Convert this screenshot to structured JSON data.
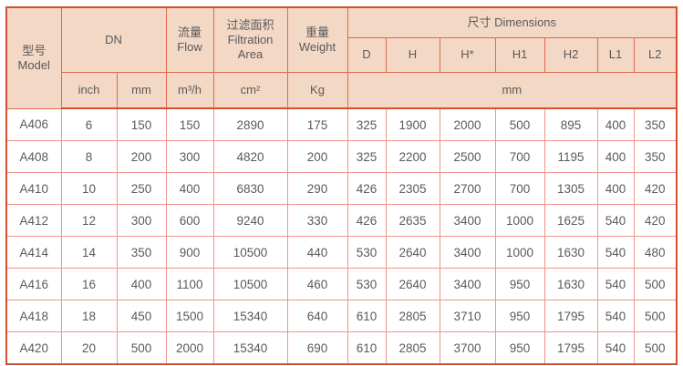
{
  "table": {
    "header": {
      "model": "型号\nModel",
      "dn": "DN",
      "flow": "流量\nFlow",
      "filtration": "过滤面积\nFiltration\nArea",
      "weight": "重量\nWeight",
      "dimensions": "尺寸 Dimensions",
      "inch": "inch",
      "mm": "mm",
      "flow_unit": "m³/h",
      "filtration_unit": "cm²",
      "weight_unit": "Kg",
      "dim_cols": [
        "D",
        "H",
        "H*",
        "H1",
        "H2",
        "L1",
        "L2"
      ],
      "dim_unit": "mm"
    },
    "rows": [
      [
        "A406",
        "6",
        "150",
        "150",
        "2890",
        "175",
        "325",
        "1900",
        "2000",
        "500",
        "895",
        "400",
        "350"
      ],
      [
        "A408",
        "8",
        "200",
        "300",
        "4820",
        "200",
        "325",
        "2200",
        "2500",
        "700",
        "1195",
        "400",
        "350"
      ],
      [
        "A410",
        "10",
        "250",
        "400",
        "6830",
        "290",
        "426",
        "2305",
        "2700",
        "700",
        "1305",
        "400",
        "420"
      ],
      [
        "A412",
        "12",
        "300",
        "600",
        "9240",
        "330",
        "426",
        "2635",
        "3400",
        "1000",
        "1625",
        "540",
        "420"
      ],
      [
        "A414",
        "14",
        "350",
        "900",
        "10500",
        "440",
        "530",
        "2640",
        "3400",
        "1000",
        "1630",
        "540",
        "480"
      ],
      [
        "A416",
        "16",
        "400",
        "1100",
        "10500",
        "460",
        "530",
        "2640",
        "3400",
        "950",
        "1630",
        "540",
        "500"
      ],
      [
        "A418",
        "18",
        "450",
        "1500",
        "15340",
        "640",
        "610",
        "2805",
        "3710",
        "950",
        "1795",
        "540",
        "500"
      ],
      [
        "A420",
        "20",
        "500",
        "2000",
        "15340",
        "690",
        "610",
        "2805",
        "3700",
        "950",
        "1795",
        "540",
        "500"
      ]
    ]
  },
  "colors": {
    "header_bg": "#f3d8c6",
    "outer_border": "#d4502f",
    "header_border": "#e06a4a",
    "body_border": "#f0948a",
    "text": "#5a5a5a"
  }
}
